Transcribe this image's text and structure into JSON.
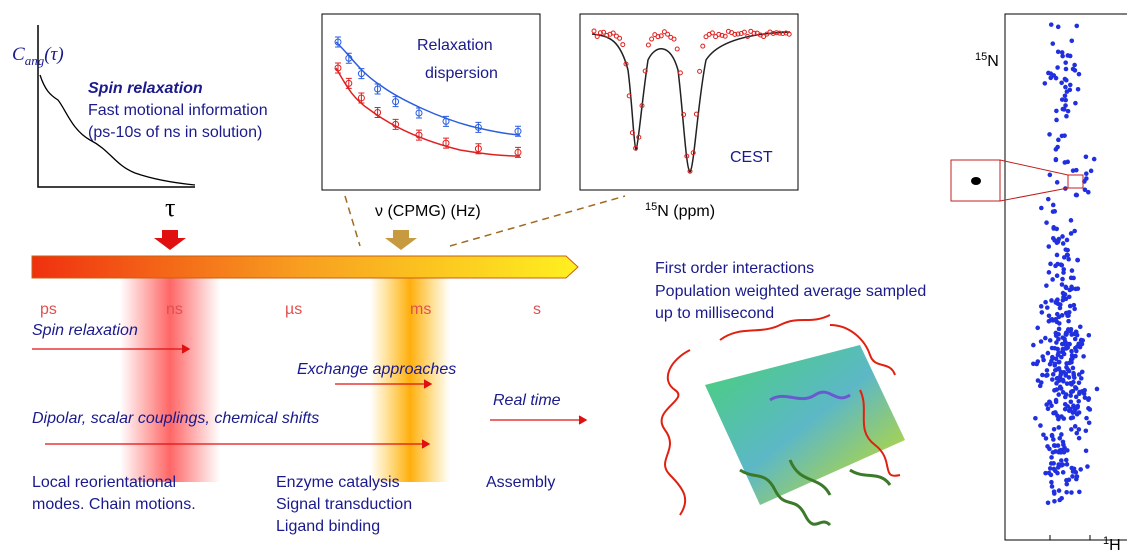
{
  "correlation": {
    "symbol": "C",
    "subscript": "ang",
    "argument": "(τ)",
    "axis_label": "τ"
  },
  "spin_text": {
    "title": "Spin relaxation",
    "lines": [
      "Fast motional information",
      "(ps-10s of ns in solution)"
    ]
  },
  "dispersion_plot": {
    "title": [
      "Relaxation",
      "dispersion"
    ],
    "x_label": "ν (CPMG) (Hz)"
  },
  "cest_plot": {
    "title": "CEST",
    "x_label_sup": "15",
    "x_label": "N (ppm)"
  },
  "timescale": {
    "units": [
      "ps",
      "ns",
      "µs",
      "ms",
      "s"
    ]
  },
  "arrows": {
    "spin": "Spin relaxation",
    "exchange": "Exchange approaches",
    "real_time": "Real time",
    "dipolar": "Dipolar, scalar couplings, chemical shifts"
  },
  "processes": {
    "fast": [
      "Local reorientational",
      "modes. Chain motions."
    ],
    "slow": [
      "Enzyme catalysis",
      "Signal transduction",
      "Ligand binding"
    ],
    "assembly": "Assembly"
  },
  "interactions": [
    "First  order interactions",
    "Population weighted average sampled",
    "up to millisecond"
  ],
  "spectrum": {
    "y_label_sup": "15",
    "y_label": "N",
    "x_label_sup": "1",
    "x_label": "H"
  }
}
